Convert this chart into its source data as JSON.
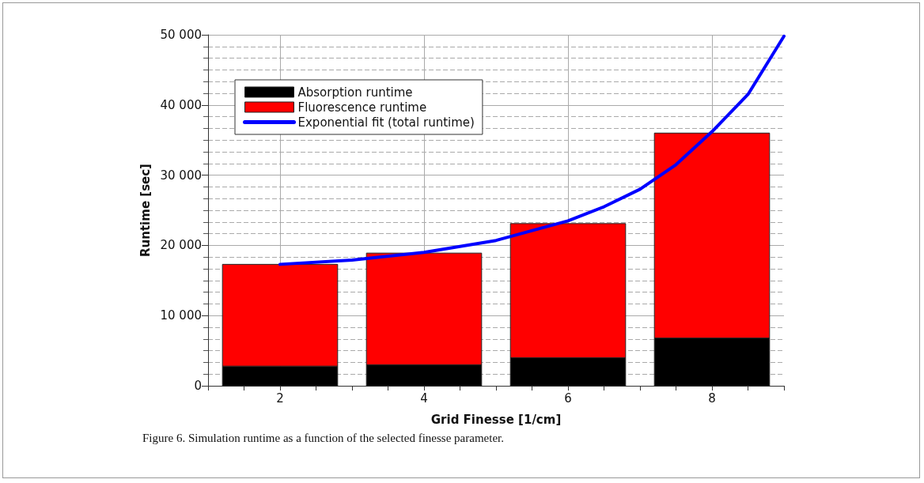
{
  "chart_data": {
    "type": "bar",
    "stacked": true,
    "xlabel": "Grid Finesse [1/cm]",
    "ylabel": "Runtime [sec]",
    "x": [
      2,
      4,
      6,
      8
    ],
    "series": [
      {
        "name": "Absorption runtime",
        "color": "#000000",
        "values": [
          2800,
          3000,
          4000,
          6800
        ]
      },
      {
        "name": "Fluorescence runtime",
        "color": "#ff0000",
        "values": [
          14500,
          15900,
          19100,
          29200
        ]
      },
      {
        "name": "Exponential fit (total runtime)",
        "type": "line",
        "color": "#0000ff",
        "x": [
          2,
          3,
          4,
          5,
          6,
          6.5,
          7,
          7.5,
          8,
          8.5,
          9
        ],
        "values": [
          17300,
          17900,
          19000,
          20700,
          23500,
          25500,
          28000,
          31500,
          36200,
          41500,
          49800
        ]
      }
    ],
    "xlim": [
      1,
      9
    ],
    "xticks": [
      {
        "value": 1,
        "label": null
      },
      {
        "value": 1.5,
        "label": null
      },
      2,
      {
        "value": 2.5,
        "label": null
      },
      {
        "value": 3,
        "label": null
      },
      {
        "value": 3.5,
        "label": null
      },
      4,
      {
        "value": 4.5,
        "label": null
      },
      {
        "value": 5,
        "label": null
      },
      {
        "value": 5.5,
        "label": null
      },
      6,
      {
        "value": 6.5,
        "label": null
      },
      {
        "value": 7,
        "label": null
      },
      {
        "value": 7.5,
        "label": null
      },
      8,
      {
        "value": 8.5,
        "label": null
      },
      {
        "value": 9,
        "label": null
      }
    ],
    "ylim": [
      0,
      50000
    ],
    "yticks": [
      0,
      {
        "value": 10000,
        "label": "10 000"
      },
      {
        "value": 20000,
        "label": "20 000"
      },
      {
        "value": 30000,
        "label": "30 000"
      },
      {
        "value": 40000,
        "label": "40 000"
      },
      {
        "value": 50000,
        "label": "50 000"
      }
    ],
    "grid": true,
    "legend": "top left",
    "line_style": "solid",
    "annotations": [
      "Figure 6. Simulation runtime as a function of the selected finesse parameter."
    ]
  }
}
